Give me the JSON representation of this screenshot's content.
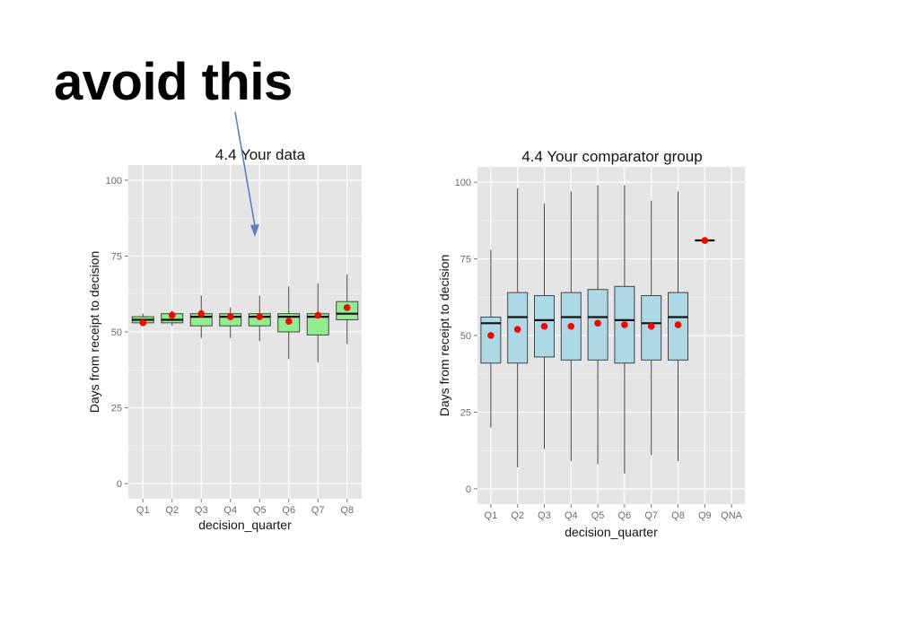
{
  "slide": {
    "title": "avoid this"
  },
  "colors": {
    "panel_bg": "#e5e5e5",
    "grid": "#ffffff",
    "left_box_fill": "#90ee90",
    "right_box_fill": "#add8e6",
    "mean_point": "#ff0000",
    "arrow": "#5b7fc0"
  },
  "chart_data": [
    {
      "type": "box",
      "title": "4.4 Your data",
      "xlabel": "decision_quarter",
      "ylabel": "Days from receipt to decision",
      "ylim": [
        -5,
        105
      ],
      "yticks": [
        0,
        25,
        50,
        75,
        100
      ],
      "categories": [
        "Q1",
        "Q2",
        "Q3",
        "Q4",
        "Q5",
        "Q6",
        "Q7",
        "Q8"
      ],
      "box_color": "light green",
      "boxes": [
        {
          "min": 52,
          "q1": 53,
          "median": 54,
          "q3": 55,
          "max": 56,
          "mean": 53
        },
        {
          "min": 52,
          "q1": 53,
          "median": 54,
          "q3": 56,
          "max": 57,
          "mean": 55.5
        },
        {
          "min": 48,
          "q1": 52,
          "median": 55,
          "q3": 56,
          "max": 62,
          "mean": 56
        },
        {
          "min": 48,
          "q1": 52,
          "median": 55,
          "q3": 56,
          "max": 58,
          "mean": 55
        },
        {
          "min": 47,
          "q1": 52,
          "median": 55,
          "q3": 56,
          "max": 62,
          "mean": 55
        },
        {
          "min": 41,
          "q1": 50,
          "median": 55,
          "q3": 56,
          "max": 65,
          "mean": 53.5
        },
        {
          "min": 40,
          "q1": 49,
          "median": 55,
          "q3": 56,
          "max": 66,
          "mean": 55.5
        },
        {
          "min": 46,
          "q1": 54,
          "median": 56,
          "q3": 60,
          "max": 69,
          "mean": 58
        }
      ]
    },
    {
      "type": "box",
      "title": "4.4 Your comparator group",
      "xlabel": "decision_quarter",
      "ylabel": "Days from receipt to decision",
      "ylim": [
        -5,
        105
      ],
      "yticks": [
        0,
        25,
        50,
        75,
        100
      ],
      "categories": [
        "Q1",
        "Q2",
        "Q3",
        "Q4",
        "Q5",
        "Q6",
        "Q7",
        "Q8",
        "Q9",
        "QNA"
      ],
      "box_color": "light blue",
      "boxes": [
        {
          "min": 20,
          "q1": 41,
          "median": 54,
          "q3": 56,
          "max": 78,
          "mean": 50
        },
        {
          "min": 7,
          "q1": 41,
          "median": 56,
          "q3": 64,
          "max": 98,
          "mean": 52
        },
        {
          "min": 13,
          "q1": 43,
          "median": 55,
          "q3": 63,
          "max": 93,
          "mean": 53
        },
        {
          "min": 9,
          "q1": 42,
          "median": 56,
          "q3": 64,
          "max": 97,
          "mean": 53
        },
        {
          "min": 8,
          "q1": 42,
          "median": 56,
          "q3": 65,
          "max": 99,
          "mean": 54
        },
        {
          "min": 5,
          "q1": 41,
          "median": 55,
          "q3": 66,
          "max": 99,
          "mean": 53.5
        },
        {
          "min": 11,
          "q1": 42,
          "median": 54,
          "q3": 63,
          "max": 94,
          "mean": 53
        },
        {
          "min": 9,
          "q1": 42,
          "median": 56,
          "q3": 64,
          "max": 97,
          "mean": 53.5
        },
        {
          "min": 81,
          "q1": 81,
          "median": 81,
          "q3": 81,
          "max": 81,
          "mean": 81
        },
        null
      ]
    }
  ]
}
